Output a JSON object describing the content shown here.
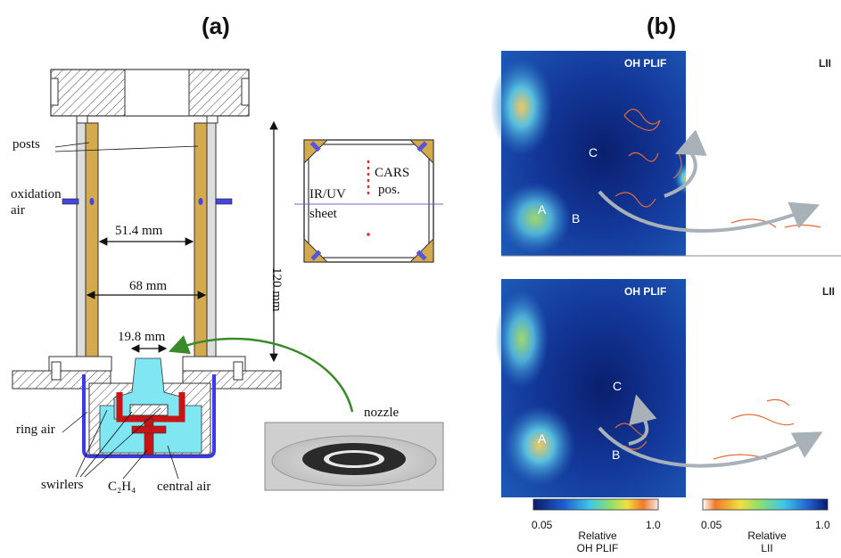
{
  "panel_a": {
    "label": "(a)",
    "labels": {
      "posts": "posts",
      "oxidation_air_1": "oxidation",
      "oxidation_air_2": "air",
      "dim_inner": "51.4 mm",
      "dim_outer": "68 mm",
      "dim_nozzle": "19.8 mm",
      "dim_height": "120 mm",
      "ring_air": "ring air",
      "swirlers": "swirlers",
      "fuel": "C₂H₄",
      "central_air": "central air",
      "nozzle": "nozzle"
    },
    "inset": {
      "sheet_1": "IR/UV",
      "sheet_2": "sheet",
      "cars_1": "CARS",
      "cars_2": "pos."
    },
    "colors": {
      "post_wood": "#d4aa4e",
      "ring_air_blue": "#3a3af0",
      "cavity_cyan": "#7fe6f2",
      "fuel_red": "#c81414",
      "arrow_green": "#3a8a2a"
    }
  },
  "panel_b": {
    "label": "(b)",
    "top": {
      "left_tag": "OH PLIF",
      "right_tag": "LII",
      "regions": [
        "A",
        "B",
        "C"
      ]
    },
    "bottom": {
      "left_tag": "OH PLIF",
      "right_tag": "LII",
      "regions": [
        "A",
        "B",
        "C"
      ]
    },
    "colorbar_ohplif": {
      "min": "0.05",
      "max": "1.0",
      "title_1": "Relative",
      "title_2": "OH PLIF"
    },
    "colorbar_lii": {
      "min": "0.05",
      "max": "1.0",
      "title_1": "Relative",
      "title_2": "LII"
    }
  }
}
